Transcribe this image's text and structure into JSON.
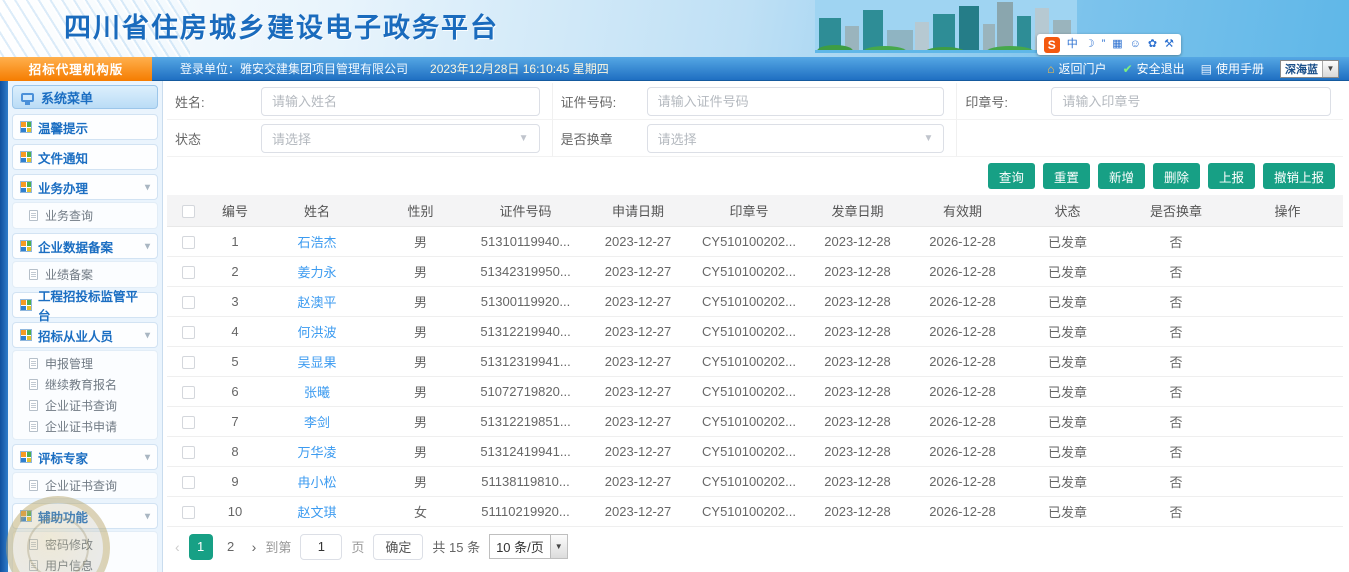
{
  "colors": {
    "accent": "#17a085",
    "link": "#3c9bf0",
    "nav_blue": "#1f6fc2",
    "badge_orange": "#f57c00",
    "title_blue": "#1a6bbd"
  },
  "header": {
    "title": "四川省住房城乡建设电子政务平台",
    "ime_bar": {
      "logo": "S",
      "icons": [
        {
          "name": "chinese-mode-icon",
          "glyph": "中"
        },
        {
          "name": "moon-icon",
          "glyph": "☽"
        },
        {
          "name": "punctuation-icon",
          "glyph": "”"
        },
        {
          "name": "keyboard-icon",
          "glyph": "▦"
        },
        {
          "name": "handwriting-icon",
          "glyph": "☺"
        },
        {
          "name": "skin-icon",
          "glyph": "✿"
        },
        {
          "name": "wrench-icon",
          "glyph": "⚒"
        }
      ]
    }
  },
  "navbar": {
    "edition": "招标代理机构版",
    "login_unit": "登录单位：雅安交建集团项目管理有限公司",
    "datetime": "2023年12月28日 16:10:45 星期四",
    "links": [
      {
        "label": "返回门户",
        "icon": "home-icon",
        "glyph": "⌂"
      },
      {
        "label": "安全退出",
        "icon": "exit-icon",
        "glyph": "✔"
      },
      {
        "label": "使用手册",
        "icon": "manual-icon",
        "glyph": "▤"
      }
    ],
    "theme_select": "深海蓝"
  },
  "sidebar": {
    "title": "系统菜单",
    "menu": [
      {
        "label": "温馨提示",
        "expandable": false,
        "children": []
      },
      {
        "label": "文件通知",
        "expandable": false,
        "children": []
      },
      {
        "label": "业务办理",
        "expandable": true,
        "children": [
          "业务查询"
        ]
      },
      {
        "label": "企业数据备案",
        "expandable": true,
        "children": [
          "业绩备案"
        ]
      },
      {
        "label": "工程招投标监管平台",
        "expandable": false,
        "children": []
      },
      {
        "label": "招标从业人员",
        "expandable": true,
        "children": [
          "申报管理",
          "继续教育报名",
          "企业证书查询",
          "企业证书申请"
        ]
      },
      {
        "label": "评标专家",
        "expandable": true,
        "children": [
          "企业证书查询"
        ]
      },
      {
        "label": "辅助功能",
        "expandable": true,
        "children": [
          "密码修改",
          "用户信息"
        ]
      }
    ]
  },
  "search": {
    "fields": [
      {
        "label": "姓名:",
        "placeholder": "请输入姓名",
        "type": "input"
      },
      {
        "label": "证件号码:",
        "placeholder": "请输入证件号码",
        "type": "input"
      },
      {
        "label": "印章号:",
        "placeholder": "请输入印章号",
        "type": "input"
      },
      {
        "label": "状态",
        "placeholder": "请选择",
        "type": "select"
      },
      {
        "label": "是否换章",
        "placeholder": "请选择",
        "type": "select"
      }
    ]
  },
  "toolbar": {
    "buttons": [
      "查询",
      "重置",
      "新增",
      "删除",
      "上报",
      "撤销上报"
    ]
  },
  "table": {
    "headers": [
      "编号",
      "姓名",
      "性别",
      "证件号码",
      "申请日期",
      "印章号",
      "发章日期",
      "有效期",
      "状态",
      "是否换章",
      "操作"
    ],
    "rows": [
      {
        "no": "1",
        "name": "石浩杰",
        "gender": "男",
        "id_number": "51310119940...",
        "apply_date": "2023-12-27",
        "seal_number": "CY510100202...",
        "issue_date": "2023-12-28",
        "valid_until": "2026-12-28",
        "status": "已发章",
        "seal_changed": "否",
        "operation": ""
      },
      {
        "no": "2",
        "name": "姜力永",
        "gender": "男",
        "id_number": "51342319950...",
        "apply_date": "2023-12-27",
        "seal_number": "CY510100202...",
        "issue_date": "2023-12-28",
        "valid_until": "2026-12-28",
        "status": "已发章",
        "seal_changed": "否",
        "operation": ""
      },
      {
        "no": "3",
        "name": "赵澳平",
        "gender": "男",
        "id_number": "51300119920...",
        "apply_date": "2023-12-27",
        "seal_number": "CY510100202...",
        "issue_date": "2023-12-28",
        "valid_until": "2026-12-28",
        "status": "已发章",
        "seal_changed": "否",
        "operation": ""
      },
      {
        "no": "4",
        "name": "何洪波",
        "gender": "男",
        "id_number": "51312219940...",
        "apply_date": "2023-12-27",
        "seal_number": "CY510100202...",
        "issue_date": "2023-12-28",
        "valid_until": "2026-12-28",
        "status": "已发章",
        "seal_changed": "否",
        "operation": ""
      },
      {
        "no": "5",
        "name": "吴显果",
        "gender": "男",
        "id_number": "51312319941...",
        "apply_date": "2023-12-27",
        "seal_number": "CY510100202...",
        "issue_date": "2023-12-28",
        "valid_until": "2026-12-28",
        "status": "已发章",
        "seal_changed": "否",
        "operation": ""
      },
      {
        "no": "6",
        "name": "张曦",
        "gender": "男",
        "id_number": "51072719820...",
        "apply_date": "2023-12-27",
        "seal_number": "CY510100202...",
        "issue_date": "2023-12-28",
        "valid_until": "2026-12-28",
        "status": "已发章",
        "seal_changed": "否",
        "operation": ""
      },
      {
        "no": "7",
        "name": "李剑",
        "gender": "男",
        "id_number": "51312219851...",
        "apply_date": "2023-12-27",
        "seal_number": "CY510100202...",
        "issue_date": "2023-12-28",
        "valid_until": "2026-12-28",
        "status": "已发章",
        "seal_changed": "否",
        "operation": ""
      },
      {
        "no": "8",
        "name": "万华凌",
        "gender": "男",
        "id_number": "51312419941...",
        "apply_date": "2023-12-27",
        "seal_number": "CY510100202...",
        "issue_date": "2023-12-28",
        "valid_until": "2026-12-28",
        "status": "已发章",
        "seal_changed": "否",
        "operation": ""
      },
      {
        "no": "9",
        "name": "冉小松",
        "gender": "男",
        "id_number": "51138119810...",
        "apply_date": "2023-12-27",
        "seal_number": "CY510100202...",
        "issue_date": "2023-12-28",
        "valid_until": "2026-12-28",
        "status": "已发章",
        "seal_changed": "否",
        "operation": ""
      },
      {
        "no": "10",
        "name": "赵文琪",
        "gender": "女",
        "id_number": "51110219920...",
        "apply_date": "2023-12-27",
        "seal_number": "CY510100202...",
        "issue_date": "2023-12-28",
        "valid_until": "2026-12-28",
        "status": "已发章",
        "seal_changed": "否",
        "operation": ""
      }
    ]
  },
  "pagination": {
    "prev": "‹",
    "pages": [
      "1",
      "2"
    ],
    "active_page": "1",
    "next": "›",
    "goto_prefix": "到第",
    "goto_value": "1",
    "goto_suffix": "页",
    "confirm": "确定",
    "total": "共 15 条",
    "page_size": "10 条/页"
  }
}
